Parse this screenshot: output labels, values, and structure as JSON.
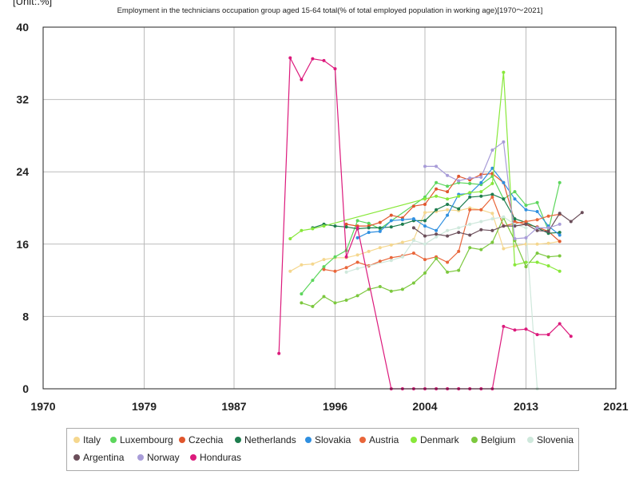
{
  "chart_data": {
    "type": "line",
    "unit_label": "[Unit:.%]",
    "title": "Employment in the technicians occupation group aged 15-64 total(% of total employed population in working age)[1970～2021]",
    "xlabel": "",
    "ylabel": "",
    "xlim": [
      1970,
      2021
    ],
    "ylim": [
      0,
      40
    ],
    "x_ticks": [
      "1970",
      "1979",
      "1987",
      "1996",
      "2004",
      "2013",
      "2021"
    ],
    "y_ticks": [
      "0",
      "8",
      "16",
      "24",
      "32",
      "40"
    ],
    "grid": true,
    "legend_position": "bottom",
    "series": [
      {
        "name": "Italy",
        "color": "#f5d78e",
        "points": [
          [
            1992,
            13.0
          ],
          [
            1993,
            13.7
          ],
          [
            1994,
            13.8
          ],
          [
            1995,
            14.3
          ],
          [
            1996,
            14.5
          ],
          [
            1997,
            14.5
          ],
          [
            1998,
            14.8
          ],
          [
            1999,
            15.2
          ],
          [
            2000,
            15.6
          ],
          [
            2001,
            15.9
          ],
          [
            2002,
            16.2
          ],
          [
            2003,
            16.5
          ],
          [
            2004,
            19.5
          ],
          [
            2005,
            19.6
          ],
          [
            2006,
            19.8
          ],
          [
            2007,
            19.7
          ],
          [
            2008,
            20.0
          ],
          [
            2009,
            19.8
          ],
          [
            2010,
            19.4
          ],
          [
            2011,
            15.5
          ],
          [
            2012,
            15.8
          ],
          [
            2013,
            16.0
          ],
          [
            2014,
            16.0
          ],
          [
            2015,
            16.1
          ],
          [
            2016,
            16.3
          ]
        ]
      },
      {
        "name": "Luxembourg",
        "color": "#5cd65c",
        "points": [
          [
            1993,
            10.5
          ],
          [
            1994,
            12.0
          ],
          [
            1995,
            13.5
          ],
          [
            1996,
            14.6
          ],
          [
            1997,
            15.3
          ],
          [
            1998,
            18.6
          ],
          [
            1999,
            18.3
          ],
          [
            2000,
            17.7
          ],
          [
            2004,
            21.2
          ],
          [
            2005,
            22.8
          ],
          [
            2006,
            22.4
          ],
          [
            2007,
            22.8
          ],
          [
            2008,
            22.7
          ],
          [
            2009,
            22.6
          ],
          [
            2010,
            23.5
          ],
          [
            2011,
            21.0
          ],
          [
            2012,
            21.8
          ],
          [
            2013,
            20.3
          ],
          [
            2014,
            20.6
          ],
          [
            2015,
            17.5
          ],
          [
            2016,
            22.8
          ]
        ]
      },
      {
        "name": "Czechia",
        "color": "#e0562d",
        "points": [
          [
            1997,
            18.2
          ],
          [
            1998,
            18.0
          ],
          [
            1999,
            18.0
          ],
          [
            2000,
            18.4
          ],
          [
            2001,
            19.2
          ],
          [
            2002,
            18.9
          ],
          [
            2003,
            20.2
          ],
          [
            2004,
            20.4
          ],
          [
            2005,
            22.1
          ],
          [
            2006,
            21.8
          ],
          [
            2007,
            23.5
          ],
          [
            2008,
            23.1
          ],
          [
            2009,
            23.7
          ],
          [
            2010,
            23.8
          ],
          [
            2011,
            22.8
          ],
          [
            2012,
            18.5
          ],
          [
            2013,
            18.2
          ],
          [
            2014,
            17.9
          ],
          [
            2015,
            17.4
          ],
          [
            2016,
            16.3
          ]
        ]
      },
      {
        "name": "Netherlands",
        "color": "#1e7d4e",
        "points": [
          [
            1994,
            17.8
          ],
          [
            1995,
            18.2
          ],
          [
            1996,
            18.0
          ],
          [
            1997,
            17.9
          ],
          [
            1998,
            17.7
          ],
          [
            1999,
            17.8
          ],
          [
            2000,
            17.8
          ],
          [
            2001,
            17.9
          ],
          [
            2002,
            18.2
          ],
          [
            2003,
            18.6
          ],
          [
            2004,
            18.6
          ],
          [
            2005,
            19.8
          ],
          [
            2006,
            20.4
          ],
          [
            2007,
            19.9
          ],
          [
            2008,
            21.2
          ],
          [
            2009,
            21.3
          ],
          [
            2010,
            21.5
          ],
          [
            2011,
            21.0
          ],
          [
            2012,
            18.8
          ],
          [
            2013,
            18.4
          ],
          [
            2014,
            17.8
          ],
          [
            2015,
            17.2
          ],
          [
            2016,
            17.3
          ]
        ]
      },
      {
        "name": "Slovakia",
        "color": "#2f8fe0",
        "points": [
          [
            1998,
            16.7
          ],
          [
            1999,
            17.3
          ],
          [
            2000,
            17.4
          ],
          [
            2001,
            18.6
          ],
          [
            2002,
            18.7
          ],
          [
            2003,
            18.8
          ],
          [
            2004,
            18.0
          ],
          [
            2005,
            17.5
          ],
          [
            2006,
            19.2
          ],
          [
            2007,
            21.5
          ],
          [
            2008,
            21.6
          ],
          [
            2009,
            22.8
          ],
          [
            2010,
            24.4
          ],
          [
            2011,
            22.8
          ],
          [
            2012,
            21.0
          ],
          [
            2013,
            19.8
          ],
          [
            2014,
            19.6
          ],
          [
            2015,
            18.0
          ],
          [
            2016,
            17.0
          ]
        ]
      },
      {
        "name": "Austria",
        "color": "#e9663a",
        "points": [
          [
            1995,
            13.2
          ],
          [
            1996,
            13.0
          ],
          [
            1997,
            13.4
          ],
          [
            1998,
            14.0
          ],
          [
            1999,
            13.6
          ],
          [
            2000,
            14.1
          ],
          [
            2001,
            14.5
          ],
          [
            2002,
            14.7
          ],
          [
            2003,
            15.0
          ],
          [
            2004,
            14.3
          ],
          [
            2005,
            14.6
          ],
          [
            2006,
            14.0
          ],
          [
            2007,
            15.2
          ],
          [
            2008,
            19.8
          ],
          [
            2009,
            19.8
          ],
          [
            2010,
            21.2
          ],
          [
            2011,
            18.0
          ],
          [
            2012,
            18.3
          ],
          [
            2013,
            18.5
          ],
          [
            2014,
            18.7
          ],
          [
            2015,
            19.1
          ],
          [
            2016,
            19.3
          ]
        ]
      },
      {
        "name": "Denmark",
        "color": "#88e83a",
        "points": [
          [
            1992,
            16.6
          ],
          [
            1993,
            17.5
          ],
          [
            1994,
            17.7
          ],
          [
            1995,
            18.0
          ],
          [
            2004,
            21.0
          ],
          [
            2005,
            21.3
          ],
          [
            2006,
            21.0
          ],
          [
            2007,
            21.3
          ],
          [
            2008,
            21.7
          ],
          [
            2009,
            21.8
          ],
          [
            2010,
            22.7
          ],
          [
            2011,
            35.0
          ],
          [
            2012,
            13.7
          ],
          [
            2013,
            14.0
          ],
          [
            2014,
            14.0
          ],
          [
            2015,
            13.6
          ],
          [
            2016,
            13.0
          ]
        ]
      },
      {
        "name": "Belgium",
        "color": "#7cc83e",
        "points": [
          [
            1993,
            9.5
          ],
          [
            1994,
            9.1
          ],
          [
            1995,
            10.2
          ],
          [
            1996,
            9.5
          ],
          [
            1997,
            9.8
          ],
          [
            1998,
            10.3
          ],
          [
            1999,
            11.0
          ],
          [
            2000,
            11.3
          ],
          [
            2001,
            10.8
          ],
          [
            2002,
            11.0
          ],
          [
            2003,
            11.7
          ],
          [
            2004,
            12.8
          ],
          [
            2005,
            14.4
          ],
          [
            2006,
            12.9
          ],
          [
            2007,
            13.1
          ],
          [
            2008,
            15.6
          ],
          [
            2009,
            15.4
          ],
          [
            2010,
            16.2
          ],
          [
            2011,
            18.9
          ],
          [
            2012,
            16.4
          ],
          [
            2013,
            13.5
          ],
          [
            2014,
            15.0
          ],
          [
            2015,
            14.6
          ],
          [
            2016,
            14.7
          ]
        ]
      },
      {
        "name": "Slovenia",
        "color": "#cfe8dc",
        "points": [
          [
            1997,
            12.9
          ],
          [
            1998,
            13.3
          ],
          [
            2001,
            14.2
          ],
          [
            2002,
            14.6
          ],
          [
            2003,
            16.4
          ],
          [
            2004,
            16.0
          ],
          [
            2005,
            16.8
          ],
          [
            2006,
            17.5
          ],
          [
            2007,
            17.8
          ],
          [
            2008,
            18.2
          ],
          [
            2009,
            18.5
          ],
          [
            2010,
            18.8
          ],
          [
            2011,
            19.0
          ],
          [
            2012,
            18.2
          ],
          [
            2013,
            17.8
          ],
          [
            2014,
            0
          ]
        ]
      },
      {
        "name": "Argentina",
        "color": "#6b4e5a",
        "points": [
          [
            2003,
            17.8
          ],
          [
            2004,
            16.9
          ],
          [
            2005,
            17.1
          ],
          [
            2006,
            16.9
          ],
          [
            2007,
            17.3
          ],
          [
            2008,
            17.0
          ],
          [
            2009,
            17.6
          ],
          [
            2010,
            17.5
          ],
          [
            2011,
            18.0
          ],
          [
            2012,
            18.0
          ],
          [
            2013,
            18.2
          ],
          [
            2014,
            17.5
          ],
          [
            2015,
            17.4
          ],
          [
            2016,
            19.4
          ],
          [
            2017,
            18.5
          ],
          [
            2018,
            19.5
          ]
        ]
      },
      {
        "name": "Norway",
        "color": "#a89cd8",
        "points": [
          [
            2004,
            24.6
          ],
          [
            2005,
            24.6
          ],
          [
            2006,
            23.6
          ],
          [
            2007,
            23.0
          ],
          [
            2008,
            23.3
          ],
          [
            2009,
            23.4
          ],
          [
            2010,
            26.4
          ],
          [
            2011,
            27.3
          ],
          [
            2012,
            16.6
          ],
          [
            2013,
            16.7
          ],
          [
            2014,
            17.8
          ],
          [
            2015,
            17.8
          ],
          [
            2016,
            18.2
          ]
        ]
      },
      {
        "name": "Honduras",
        "color": "#dc1a7c",
        "points": [
          [
            1991,
            3.9
          ],
          [
            1992,
            36.6
          ],
          [
            1993,
            34.2
          ],
          [
            1994,
            36.5
          ],
          [
            1995,
            36.3
          ],
          [
            1996,
            35.4
          ],
          [
            1997,
            14.6
          ],
          [
            1998,
            17.8
          ],
          [
            2001,
            0
          ],
          [
            2002,
            0
          ],
          [
            2003,
            0
          ],
          [
            2004,
            0
          ],
          [
            2005,
            0
          ],
          [
            2006,
            0
          ],
          [
            2007,
            0
          ],
          [
            2008,
            0
          ],
          [
            2009,
            0
          ],
          [
            2010,
            0
          ],
          [
            2011,
            6.9
          ],
          [
            2012,
            6.5
          ],
          [
            2013,
            6.6
          ],
          [
            2014,
            6.0
          ],
          [
            2015,
            6.0
          ],
          [
            2016,
            7.2
          ],
          [
            2017,
            5.8
          ]
        ]
      }
    ]
  }
}
